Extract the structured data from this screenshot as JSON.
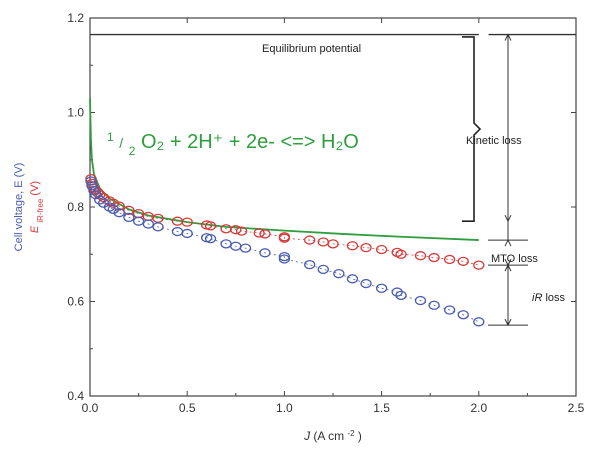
{
  "chart_data": {
    "type": "scatter",
    "title": "",
    "x_axis": {
      "label_prefix": "J",
      "label_units": "(A cm",
      "label_sup": "-2",
      "label_close": ")",
      "range": [
        0,
        2.5
      ],
      "ticks": [
        0.0,
        0.5,
        1.0,
        1.5,
        2.0,
        2.5
      ],
      "tick_labels": [
        "0.0",
        "0.5",
        "1.0",
        "1.5",
        "2.0",
        "2.5"
      ]
    },
    "y_axis": {
      "label_line1": "Cell voltage, E (V)",
      "label_line2_main": "E",
      "label_line2_sub": "iR-free",
      "label_line2_units": "(V)",
      "range": [
        0.4,
        1.2
      ],
      "ticks": [
        0.4,
        0.6,
        0.8,
        1.0,
        1.2
      ],
      "tick_labels": [
        "0.4",
        "0.6",
        "0.8",
        "1.0",
        "1.2"
      ]
    },
    "grid": false,
    "equation": {
      "frac_num": "1",
      "frac_den": "2",
      "rest": "O₂ + 2H⁺ + 2e- <=> H₂O",
      "color": "#2e9e3e"
    },
    "annotations": {
      "equilibrium": "Equilibrium potential",
      "kinetic": "Kinetic loss",
      "mto": "MTO loss",
      "ir_prefix": "iR",
      "ir_suffix": " loss"
    },
    "reference_lines": {
      "equilibrium_potential": 1.165,
      "kinetic_bracket": [
        0.77,
        1.16
      ],
      "mto_bracket": [
        0.677,
        0.73
      ],
      "ir_bracket": [
        0.55,
        0.677
      ]
    },
    "series": [
      {
        "style": "line",
        "color": "#2e9e3e",
        "x": [
          0.0,
          0.005,
          0.01,
          0.02,
          0.05,
          0.1,
          0.2,
          0.3,
          0.5,
          0.7,
          1.0,
          1.3,
          1.6,
          2.0
        ],
        "y": [
          1.03,
          0.94,
          0.9,
          0.87,
          0.84,
          0.818,
          0.795,
          0.782,
          0.768,
          0.758,
          0.75,
          0.743,
          0.737,
          0.73
        ]
      },
      {
        "style": "markers",
        "color": "#d63a3a",
        "x": [
          0.005,
          0.01,
          0.02,
          0.03,
          0.04,
          0.05,
          0.07,
          0.1,
          0.12,
          0.15,
          0.2,
          0.25,
          0.3,
          0.35,
          0.45,
          0.5,
          0.6,
          0.62,
          0.7,
          0.75,
          0.78,
          0.87,
          0.9,
          1.0,
          1.0,
          1.13,
          1.2,
          1.25,
          1.35,
          1.42,
          1.5,
          1.58,
          1.6,
          1.7,
          1.77,
          1.85,
          1.92,
          2.0
        ],
        "y": [
          0.86,
          0.85,
          0.84,
          0.835,
          0.83,
          0.826,
          0.82,
          0.813,
          0.808,
          0.802,
          0.793,
          0.786,
          0.78,
          0.776,
          0.77,
          0.768,
          0.762,
          0.76,
          0.754,
          0.752,
          0.749,
          0.745,
          0.743,
          0.737,
          0.734,
          0.73,
          0.726,
          0.722,
          0.718,
          0.714,
          0.71,
          0.704,
          0.7,
          0.697,
          0.693,
          0.689,
          0.685,
          0.677
        ]
      },
      {
        "style": "markers",
        "color": "#4a5db0",
        "x": [
          0.005,
          0.01,
          0.02,
          0.03,
          0.05,
          0.07,
          0.1,
          0.12,
          0.15,
          0.2,
          0.25,
          0.3,
          0.35,
          0.45,
          0.5,
          0.6,
          0.62,
          0.7,
          0.75,
          0.8,
          0.9,
          1.0,
          1.0,
          1.13,
          1.2,
          1.28,
          1.35,
          1.42,
          1.5,
          1.58,
          1.6,
          1.7,
          1.77,
          1.85,
          1.92,
          2.0
        ],
        "y": [
          0.855,
          0.845,
          0.835,
          0.826,
          0.815,
          0.808,
          0.8,
          0.795,
          0.788,
          0.778,
          0.77,
          0.764,
          0.758,
          0.748,
          0.744,
          0.735,
          0.733,
          0.722,
          0.717,
          0.713,
          0.703,
          0.695,
          0.69,
          0.678,
          0.668,
          0.659,
          0.648,
          0.638,
          0.628,
          0.62,
          0.613,
          0.602,
          0.592,
          0.582,
          0.572,
          0.557
        ]
      }
    ]
  }
}
